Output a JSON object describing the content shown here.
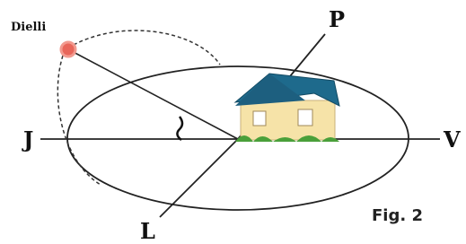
{
  "labels": {
    "sun": "Dielli",
    "north": "P",
    "west": "J",
    "east": "V",
    "south": "L"
  },
  "caption": "Fig. 2"
}
